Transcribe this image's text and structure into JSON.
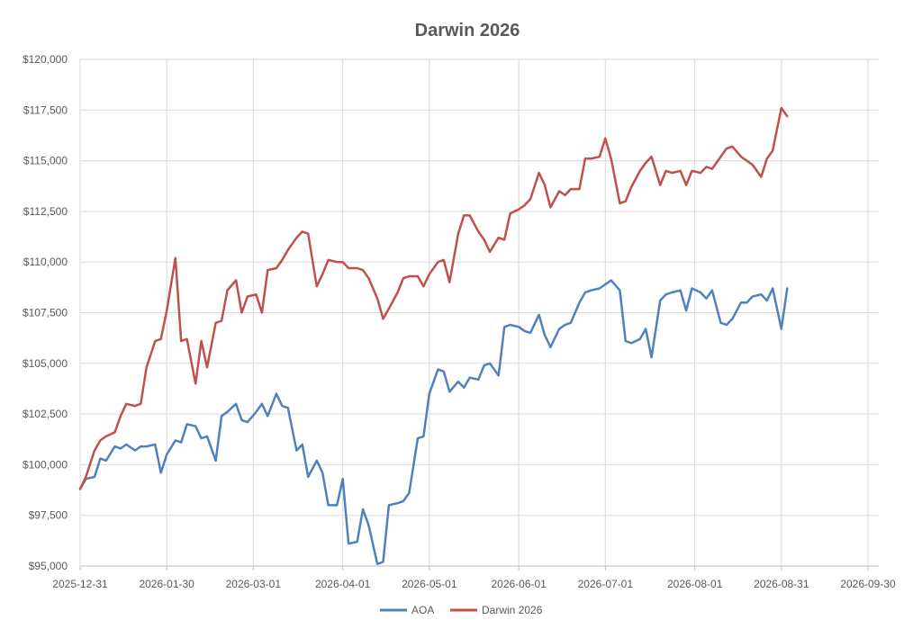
{
  "chart_data": {
    "type": "line",
    "title": "Darwin 2026",
    "xlabel": "",
    "ylabel": "",
    "x_type": "date",
    "xlim": [
      "2025-12-31",
      "2026-09-30"
    ],
    "ylim": [
      95000,
      120000
    ],
    "grid": true,
    "legend_position": "bottom",
    "x_ticks": [
      "2025-12-31",
      "2026-01-30",
      "2026-03-01",
      "2026-04-01",
      "2026-05-01",
      "2026-06-01",
      "2026-07-01",
      "2026-08-01",
      "2026-08-31",
      "2026-09-30"
    ],
    "y_ticks": [
      95000,
      97500,
      100000,
      102500,
      105000,
      107500,
      110000,
      112500,
      115000,
      117500,
      120000
    ],
    "y_tick_labels": [
      "$95,000",
      "$97,500",
      "$100,000",
      "$102,500",
      "$105,000",
      "$107,500",
      "$110,000",
      "$112,500",
      "$115,000",
      "$117,500",
      "$120,000"
    ],
    "series": [
      {
        "name": "AOA",
        "color": "#4f81bd",
        "x": [
          "2025-12-31",
          "2026-01-02",
          "2026-01-05",
          "2026-01-07",
          "2026-01-09",
          "2026-01-12",
          "2026-01-14",
          "2026-01-16",
          "2026-01-19",
          "2026-01-21",
          "2026-01-23",
          "2026-01-26",
          "2026-01-28",
          "2026-01-30",
          "2026-02-02",
          "2026-02-04",
          "2026-02-06",
          "2026-02-09",
          "2026-02-11",
          "2026-02-13",
          "2026-02-16",
          "2026-02-18",
          "2026-02-20",
          "2026-02-23",
          "2026-02-25",
          "2026-02-27",
          "2026-03-02",
          "2026-03-04",
          "2026-03-06",
          "2026-03-09",
          "2026-03-11",
          "2026-03-13",
          "2026-03-16",
          "2026-03-18",
          "2026-03-20",
          "2026-03-23",
          "2026-03-25",
          "2026-03-27",
          "2026-03-30",
          "2026-04-01",
          "2026-04-03",
          "2026-04-06",
          "2026-04-08",
          "2026-04-10",
          "2026-04-13",
          "2026-04-15",
          "2026-04-17",
          "2026-04-20",
          "2026-04-22",
          "2026-04-24",
          "2026-04-27",
          "2026-04-29",
          "2026-05-01",
          "2026-05-04",
          "2026-05-06",
          "2026-05-08",
          "2026-05-11",
          "2026-05-13",
          "2026-05-15",
          "2026-05-18",
          "2026-05-20",
          "2026-05-22",
          "2026-05-25",
          "2026-05-27",
          "2026-05-29",
          "2026-06-01",
          "2026-06-03",
          "2026-06-05",
          "2026-06-08",
          "2026-06-10",
          "2026-06-12",
          "2026-06-15",
          "2026-06-17",
          "2026-06-19",
          "2026-06-22",
          "2026-06-24",
          "2026-06-26",
          "2026-06-29",
          "2026-07-01",
          "2026-07-03",
          "2026-07-06",
          "2026-07-08",
          "2026-07-10",
          "2026-07-13",
          "2026-07-15",
          "2026-07-17",
          "2026-07-20",
          "2026-07-22",
          "2026-07-24",
          "2026-07-27",
          "2026-07-29",
          "2026-07-31",
          "2026-08-03",
          "2026-08-05",
          "2026-08-07",
          "2026-08-10",
          "2026-08-12",
          "2026-08-14",
          "2026-08-17",
          "2026-08-19",
          "2026-08-21",
          "2026-08-24",
          "2026-08-26",
          "2026-08-28",
          "2026-08-31",
          "2026-09-02"
        ],
        "values": [
          98800,
          99300,
          99400,
          100300,
          100200,
          100900,
          100800,
          101000,
          100700,
          100900,
          100900,
          101000,
          99600,
          100500,
          101200,
          101100,
          102000,
          101900,
          101300,
          101400,
          100200,
          102400,
          102600,
          103000,
          102200,
          102100,
          102600,
          103000,
          102400,
          103500,
          102900,
          102800,
          100700,
          101000,
          99400,
          100200,
          99600,
          98000,
          98000,
          99300,
          96100,
          96200,
          97800,
          97000,
          95100,
          95200,
          98000,
          98100,
          98200,
          98600,
          101300,
          101400,
          103500,
          104700,
          104600,
          103600,
          104100,
          103800,
          104300,
          104200,
          104900,
          105000,
          104400,
          106800,
          106900,
          106800,
          106600,
          106500,
          107400,
          106400,
          105800,
          106700,
          106900,
          107000,
          108000,
          108500,
          108600,
          108700,
          108900,
          109100,
          108600,
          106100,
          106000,
          106200,
          106700,
          105300,
          108100,
          108400,
          108500,
          108600,
          107600,
          108700,
          108500,
          108200,
          108600,
          107000,
          106900,
          107200,
          108000,
          108000,
          108300,
          108400,
          108100,
          108700,
          106700,
          108700
        ],
        "values_note": ""
      },
      {
        "name": "Darwin 2026",
        "color": "#c0504d",
        "x": [
          "2025-12-31",
          "2026-01-02",
          "2026-01-05",
          "2026-01-07",
          "2026-01-09",
          "2026-01-12",
          "2026-01-14",
          "2026-01-16",
          "2026-01-19",
          "2026-01-21",
          "2026-01-23",
          "2026-01-26",
          "2026-01-28",
          "2026-01-30",
          "2026-02-02",
          "2026-02-04",
          "2026-02-06",
          "2026-02-09",
          "2026-02-11",
          "2026-02-13",
          "2026-02-16",
          "2026-02-18",
          "2026-02-20",
          "2026-02-23",
          "2026-02-25",
          "2026-02-27",
          "2026-03-02",
          "2026-03-04",
          "2026-03-06",
          "2026-03-09",
          "2026-03-11",
          "2026-03-13",
          "2026-03-16",
          "2026-03-18",
          "2026-03-20",
          "2026-03-23",
          "2026-03-25",
          "2026-03-27",
          "2026-03-30",
          "2026-04-01",
          "2026-04-03",
          "2026-04-06",
          "2026-04-08",
          "2026-04-10",
          "2026-04-13",
          "2026-04-15",
          "2026-04-17",
          "2026-04-20",
          "2026-04-22",
          "2026-04-24",
          "2026-04-27",
          "2026-04-29",
          "2026-05-01",
          "2026-05-04",
          "2026-05-06",
          "2026-05-08",
          "2026-05-11",
          "2026-05-13",
          "2026-05-15",
          "2026-05-18",
          "2026-05-20",
          "2026-05-22",
          "2026-05-25",
          "2026-05-27",
          "2026-05-29",
          "2026-06-01",
          "2026-06-03",
          "2026-06-05",
          "2026-06-08",
          "2026-06-10",
          "2026-06-12",
          "2026-06-15",
          "2026-06-17",
          "2026-06-19",
          "2026-06-22",
          "2026-06-24",
          "2026-06-26",
          "2026-06-29",
          "2026-07-01",
          "2026-07-03",
          "2026-07-06",
          "2026-07-08",
          "2026-07-10",
          "2026-07-13",
          "2026-07-15",
          "2026-07-17",
          "2026-07-20",
          "2026-07-22",
          "2026-07-24",
          "2026-07-27",
          "2026-07-29",
          "2026-07-31",
          "2026-08-03",
          "2026-08-05",
          "2026-08-07",
          "2026-08-10",
          "2026-08-12",
          "2026-08-14",
          "2026-08-17",
          "2026-08-19",
          "2026-08-21",
          "2026-08-24",
          "2026-08-26",
          "2026-08-28",
          "2026-08-31",
          "2026-09-02"
        ],
        "values": [
          98800,
          99400,
          100700,
          101200,
          101400,
          101600,
          102400,
          103000,
          102900,
          103000,
          104800,
          106100,
          106200,
          107600,
          110200,
          106100,
          106200,
          104000,
          106100,
          104800,
          107000,
          107100,
          108600,
          109100,
          107500,
          108300,
          108400,
          107500,
          109600,
          109700,
          110100,
          110600,
          111200,
          111500,
          111400,
          108800,
          109400,
          110100,
          110000,
          110000,
          109700,
          109700,
          109600,
          109200,
          108200,
          107200,
          107700,
          108500,
          109200,
          109300,
          109300,
          108800,
          109400,
          110000,
          110100,
          109000,
          111400,
          112300,
          112300,
          111500,
          111100,
          110500,
          111200,
          111100,
          112400,
          112600,
          112800,
          113100,
          114400,
          113800,
          112700,
          113500,
          113300,
          113600,
          113600,
          115100,
          115100,
          115200,
          116100,
          115100,
          112900,
          113000,
          113700,
          114500,
          114900,
          115200,
          113800,
          114500,
          114400,
          114500,
          113800,
          114500,
          114400,
          114700,
          114600,
          115200,
          115600,
          115700,
          115200,
          115000,
          114800,
          114200,
          115100,
          115500,
          117600,
          117200
        ],
        "values_note": ""
      }
    ]
  }
}
